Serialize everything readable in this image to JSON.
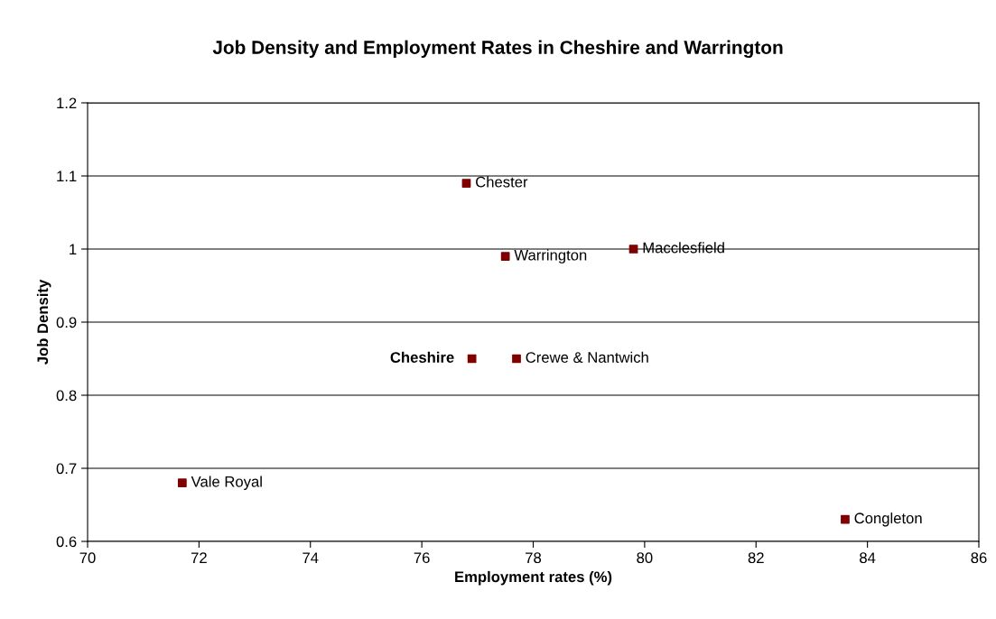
{
  "chart_data": {
    "type": "scatter",
    "title": "Job Density and Employment Rates in Cheshire and Warrington",
    "xlabel": "Employment rates (%)",
    "ylabel": "Job Density",
    "series": [
      {
        "color": "#800000",
        "x": [
          76.8,
          77.5,
          79.8,
          76.9,
          77.7,
          71.7,
          83.6
        ],
        "values": [
          1.09,
          0.99,
          1.0,
          0.85,
          0.85,
          0.68,
          0.63
        ]
      }
    ],
    "annotations": [
      {
        "text": "Chester",
        "x": 76.8,
        "y": 1.09
      },
      {
        "text": "Warrington",
        "x": 77.5,
        "y": 0.99
      },
      {
        "text": "Macclesfield",
        "x": 79.8,
        "y": 1.0
      },
      {
        "text": "Cheshire",
        "x": 76.9,
        "y": 0.85
      },
      {
        "text": "Crewe & Nantwich",
        "x": 77.7,
        "y": 0.85
      },
      {
        "text": "Vale Royal",
        "x": 71.7,
        "y": 0.68
      },
      {
        "text": "Congleton",
        "x": 83.6,
        "y": 0.63
      }
    ],
    "xlim": [
      70,
      86
    ],
    "xticks": [
      70,
      72,
      74,
      76,
      78,
      80,
      82,
      84,
      86
    ],
    "ylim": [
      0.6,
      1.2
    ],
    "yticks": [
      0.6,
      0.7,
      0.8,
      0.9,
      1,
      1.1,
      1.2
    ],
    "grid": "y",
    "marker": "square"
  }
}
